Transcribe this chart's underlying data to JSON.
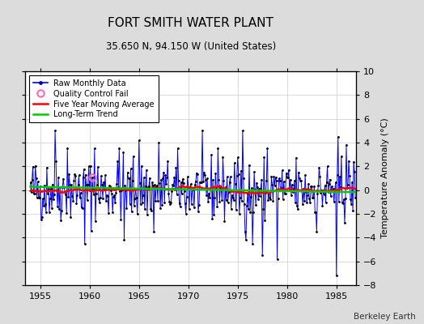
{
  "title": "FORT SMITH WATER PLANT",
  "subtitle": "35.650 N, 94.150 W (United States)",
  "ylabel": "Temperature Anomaly (°C)",
  "attribution": "Berkeley Earth",
  "xlim": [
    1953.5,
    1987.0
  ],
  "ylim": [
    -8,
    10
  ],
  "yticks": [
    -8,
    -6,
    -4,
    -2,
    0,
    2,
    4,
    6,
    8,
    10
  ],
  "xticks": [
    1955,
    1960,
    1965,
    1970,
    1975,
    1980,
    1985
  ],
  "background_color": "#dcdcdc",
  "plot_bg_color": "#ffffff",
  "raw_color": "#0000ff",
  "ma_color": "#ff0000",
  "trend_color": "#00cc00",
  "qc_color": "#ff69b4",
  "seed": 42,
  "n_months": 396,
  "start_year": 1954.0
}
